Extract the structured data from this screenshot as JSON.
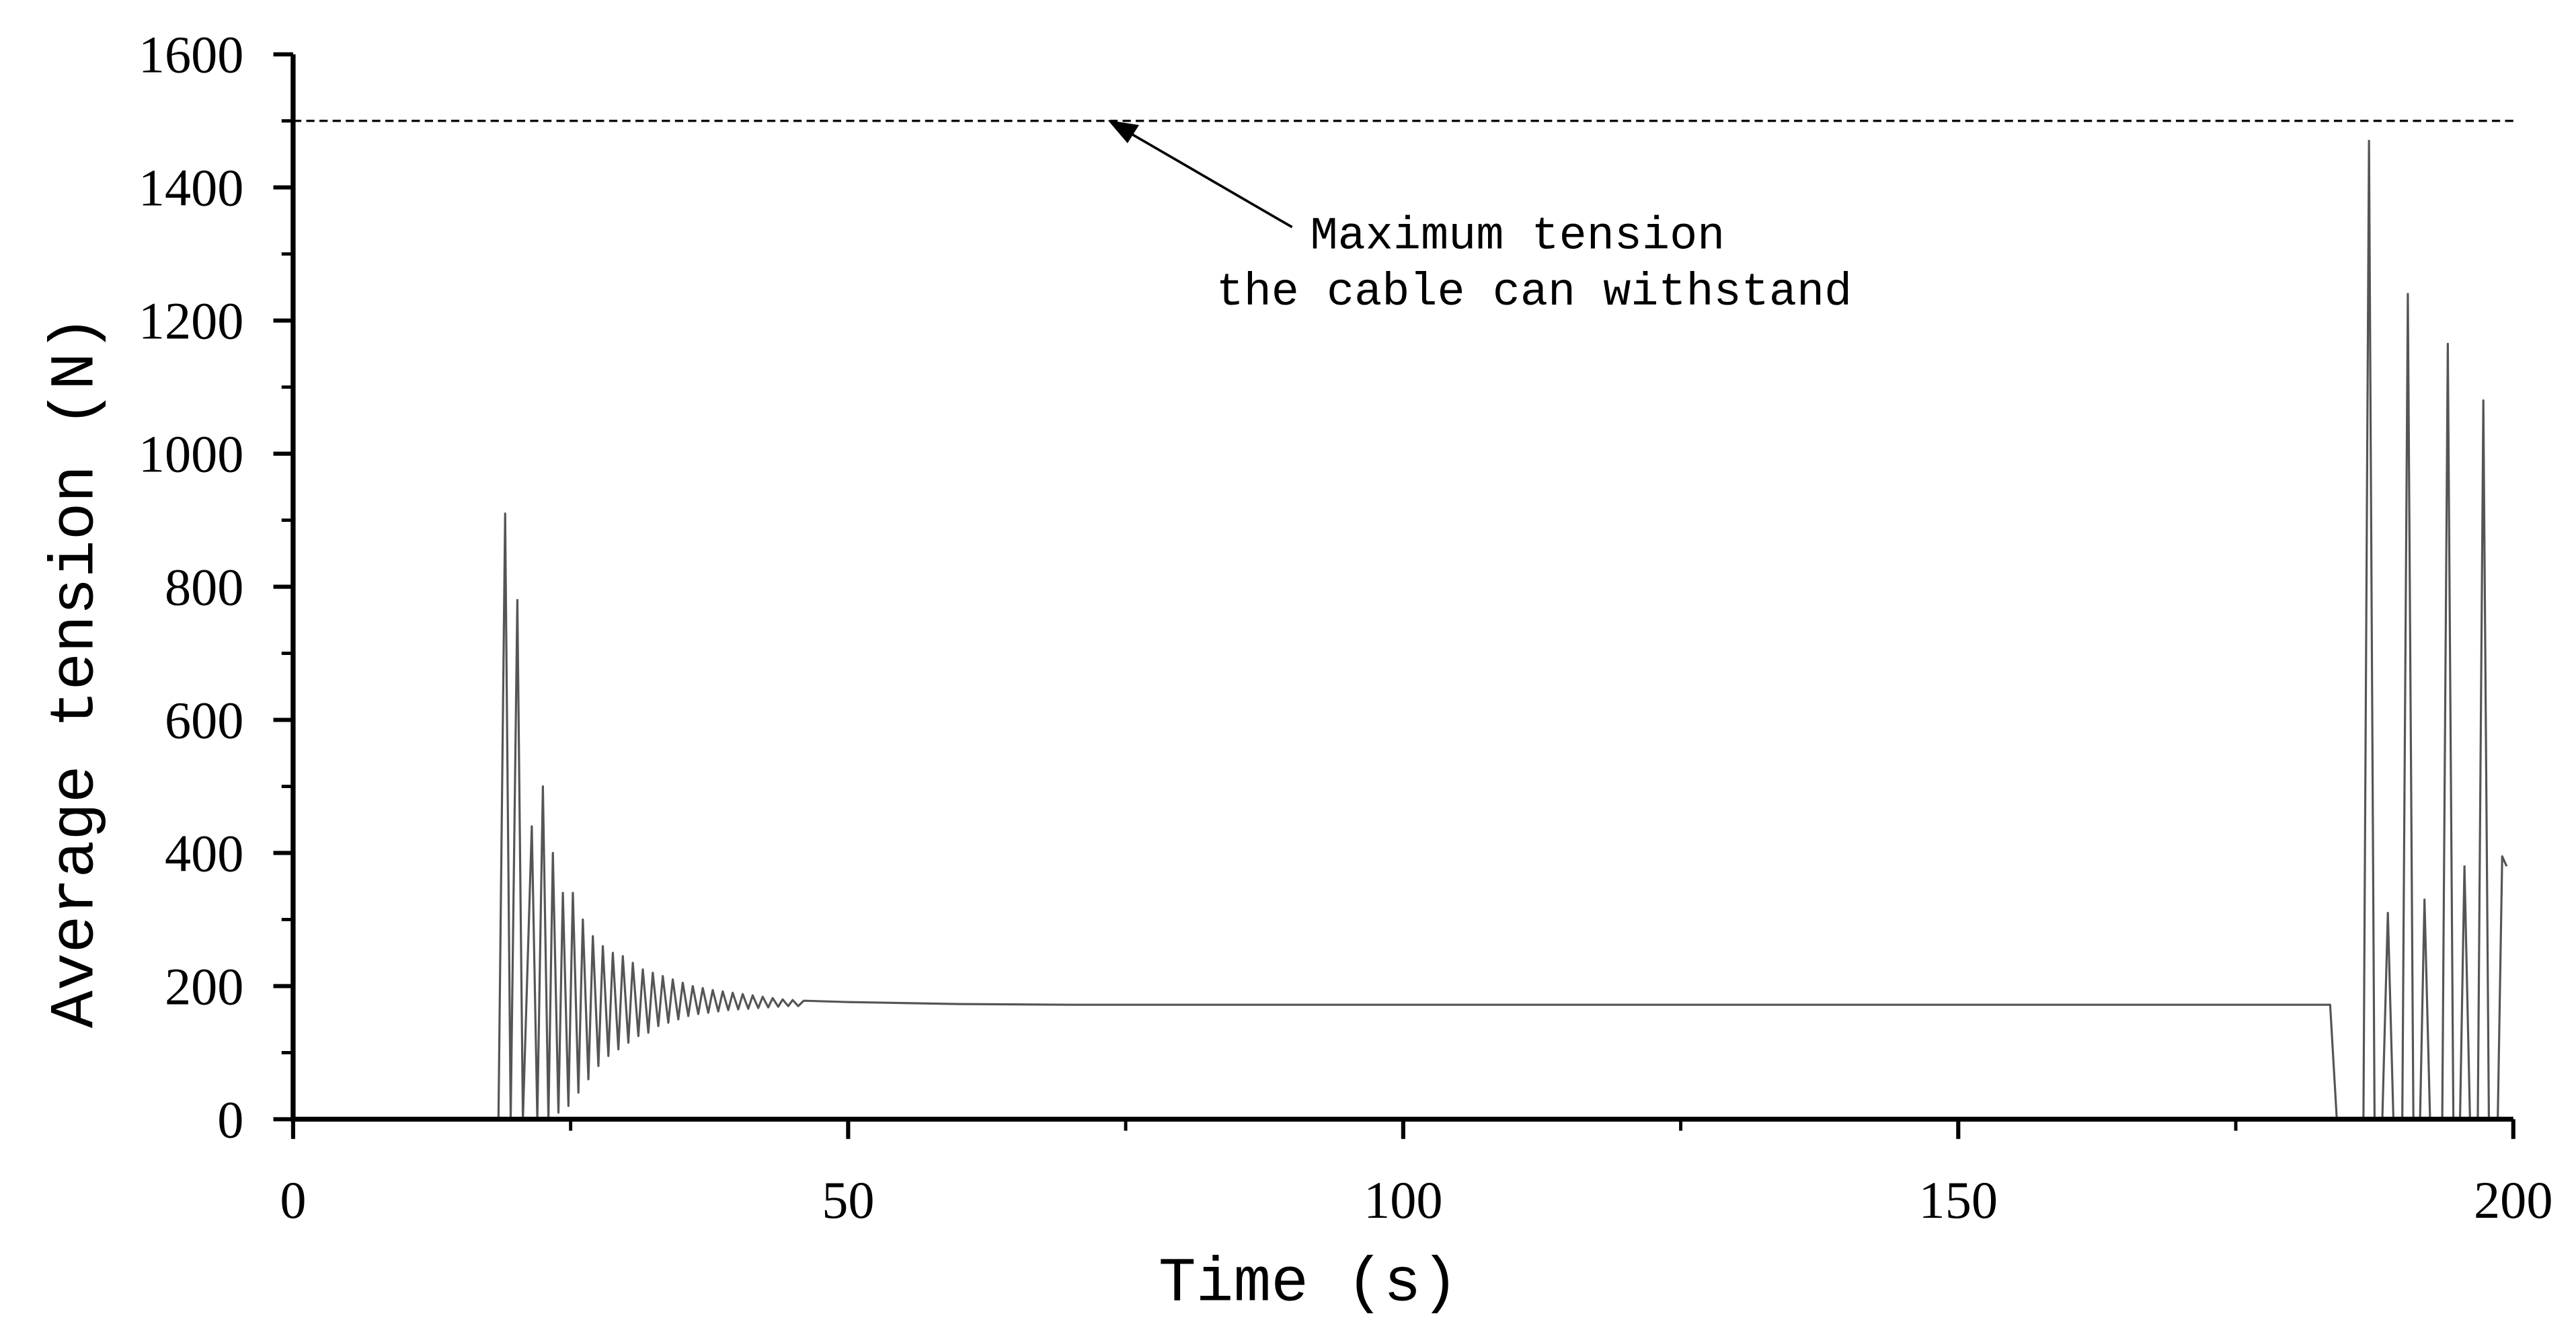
{
  "chart_data": {
    "type": "line",
    "xlabel": "Time (s)",
    "ylabel": "Average tension (N)",
    "xlim": [
      0,
      200
    ],
    "xticks": [
      0,
      50,
      100,
      150,
      200
    ],
    "xminorticks": [
      25,
      75,
      125,
      175
    ],
    "ylim": [
      0,
      1600
    ],
    "yticks": [
      0,
      200,
      400,
      600,
      800,
      1000,
      1200,
      1400,
      1600
    ],
    "yminorticks": [
      100,
      300,
      500,
      700,
      900,
      1100,
      1300,
      1500
    ],
    "hline": 1500,
    "hline_color": "#000000",
    "annotation": [
      "Maximum tension",
      "the cable can withstand"
    ],
    "series": [
      {
        "color": "#555555",
        "x": [
          0,
          18.5,
          19.1,
          19.6,
          20.2,
          20.7,
          21.5,
          22.0,
          22.5,
          23.0,
          23.4,
          23.9,
          24.3,
          24.8,
          25.2,
          25.7,
          26.1,
          26.6,
          27.0,
          27.5,
          27.9,
          28.4,
          28.8,
          29.3,
          29.7,
          30.2,
          30.6,
          31.1,
          31.5,
          32.0,
          32.4,
          32.9,
          33.3,
          33.8,
          34.2,
          34.7,
          35.1,
          35.6,
          36.0,
          36.5,
          36.9,
          37.4,
          37.8,
          38.3,
          38.7,
          39.2,
          39.6,
          40.1,
          40.5,
          41.0,
          41.4,
          41.9,
          42.3,
          42.8,
          43.2,
          43.7,
          44.1,
          44.6,
          45.0,
          45.5,
          46.0,
          50,
          60,
          70,
          183.5,
          184.1,
          186.5,
          187.0,
          187.5,
          188.2,
          188.7,
          189.2,
          190.0,
          190.5,
          191.0,
          191.6,
          192.0,
          192.5,
          193.6,
          194.1,
          194.6,
          195.2,
          195.6,
          196.1,
          196.8,
          197.3,
          197.8,
          198.6,
          199.0,
          199.4
        ],
        "values": [
          0,
          0,
          910,
          0,
          780,
          0,
          440,
          0,
          500,
          0,
          400,
          10,
          340,
          20,
          340,
          40,
          300,
          60,
          275,
          80,
          260,
          95,
          250,
          105,
          245,
          115,
          235,
          125,
          225,
          130,
          220,
          140,
          215,
          145,
          210,
          150,
          205,
          155,
          200,
          158,
          197,
          160,
          194,
          162,
          192,
          164,
          190,
          165,
          188,
          166,
          186,
          167,
          184,
          168,
          182,
          169,
          180,
          170,
          179,
          170,
          178,
          176,
          173,
          172,
          172,
          0,
          0,
          1470,
          0,
          0,
          310,
          0,
          0,
          1240,
          0,
          0,
          330,
          0,
          0,
          1165,
          0,
          0,
          380,
          0,
          0,
          1080,
          0,
          0,
          395,
          380
        ]
      }
    ]
  }
}
